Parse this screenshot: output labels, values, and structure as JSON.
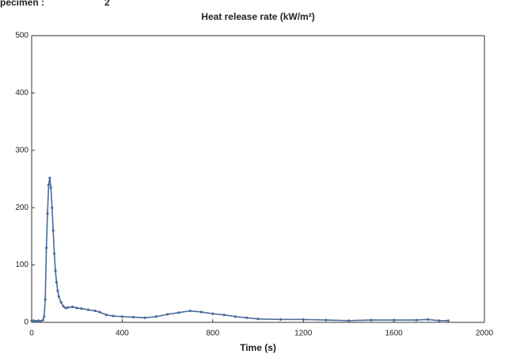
{
  "chart_data": {
    "type": "line",
    "annotations": [
      "Specimen :",
      "2"
    ],
    "title": "Heat release rate (kW/m²)",
    "x_label": "Time (s)",
    "x": [
      0,
      10,
      20,
      30,
      40,
      50,
      55,
      60,
      65,
      70,
      75,
      80,
      85,
      90,
      95,
      100,
      105,
      110,
      115,
      120,
      130,
      140,
      150,
      160,
      180,
      200,
      220,
      250,
      280,
      300,
      330,
      360,
      400,
      450,
      500,
      550,
      600,
      650,
      700,
      750,
      800,
      850,
      900,
      950,
      1000,
      1100,
      1200,
      1300,
      1400,
      1500,
      1600,
      1700,
      1750,
      1800,
      1840
    ],
    "series": [
      {
        "color": "#4a6b9a",
        "values": [
          3,
          3,
          2,
          3,
          2,
          4,
          10,
          40,
          130,
          190,
          240,
          252,
          235,
          200,
          160,
          120,
          90,
          70,
          55,
          45,
          35,
          28,
          25,
          26,
          27,
          25,
          24,
          22,
          20,
          18,
          13,
          11,
          10,
          9,
          8,
          10,
          14,
          17,
          20,
          18,
          15,
          13,
          10,
          8,
          6,
          5,
          5,
          4,
          3,
          4,
          4,
          4,
          5,
          3,
          3
        ]
      }
    ],
    "xlim": [
      0,
      2000
    ],
    "xticks": [
      0,
      400,
      800,
      1200,
      1600,
      2000
    ],
    "ylim": [
      0,
      500
    ],
    "yticks": [
      0,
      100,
      200,
      300,
      400,
      500
    ],
    "grid": false,
    "markers": true
  }
}
